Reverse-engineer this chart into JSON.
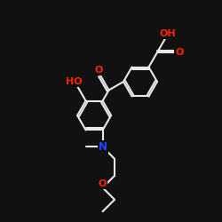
{
  "bg_color": "#111111",
  "bond_color": "#e8e8e8",
  "bond_width": 1.5,
  "atom_colors": {
    "O": "#ff2200",
    "N": "#2244ff",
    "C": "#e8e8e8"
  },
  "font_size": 7.5,
  "fig_size": [
    2.5,
    2.5
  ],
  "dpi": 100
}
